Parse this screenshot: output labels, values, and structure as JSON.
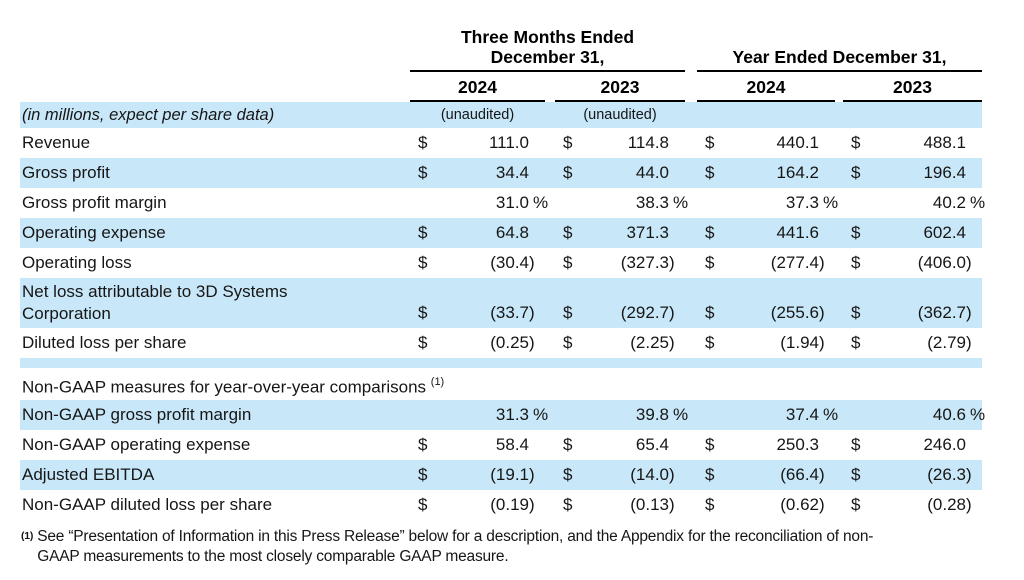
{
  "table": {
    "col_groups": [
      {
        "title_lines": [
          "Three Months Ended",
          "December 31,"
        ],
        "years": [
          "2024",
          "2023"
        ]
      },
      {
        "title_lines": [
          "Year Ended December 31,",
          ""
        ],
        "years": [
          "2024",
          "2023"
        ]
      }
    ],
    "rows": [
      {
        "type": "note",
        "shaded": true,
        "label": "(in millions, expect per share data)",
        "notes": [
          "(unaudited)",
          "(unaudited)"
        ]
      },
      {
        "type": "data",
        "shaded": false,
        "label": "Revenue",
        "cells": [
          {
            "cur": "$",
            "val": "111.0"
          },
          {
            "cur": "$",
            "val": "114.8"
          },
          {
            "cur": "$",
            "val": "440.1"
          },
          {
            "cur": "$",
            "val": "488.1"
          }
        ]
      },
      {
        "type": "data",
        "shaded": true,
        "label": "Gross profit",
        "cells": [
          {
            "cur": "$",
            "val": "34.4"
          },
          {
            "cur": "$",
            "val": "44.0"
          },
          {
            "cur": "$",
            "val": "164.2"
          },
          {
            "cur": "$",
            "val": "196.4"
          }
        ]
      },
      {
        "type": "data",
        "shaded": false,
        "label": "Gross profit margin",
        "cells": [
          {
            "cur": "",
            "val": "31.0 %"
          },
          {
            "cur": "",
            "val": "38.3 %"
          },
          {
            "cur": "",
            "val": "37.3 %"
          },
          {
            "cur": "",
            "val": "40.2 %"
          }
        ]
      },
      {
        "type": "data",
        "shaded": true,
        "label": "Operating expense",
        "cells": [
          {
            "cur": "$",
            "val": "64.8"
          },
          {
            "cur": "$",
            "val": "371.3"
          },
          {
            "cur": "$",
            "val": "441.6"
          },
          {
            "cur": "$",
            "val": "602.4"
          }
        ]
      },
      {
        "type": "data",
        "shaded": false,
        "label": "Operating loss",
        "cells": [
          {
            "cur": "$",
            "val": "(30.4)"
          },
          {
            "cur": "$",
            "val": "(327.3)"
          },
          {
            "cur": "$",
            "val": "(277.4)"
          },
          {
            "cur": "$",
            "val": "(406.0)"
          }
        ]
      },
      {
        "type": "data",
        "tall": true,
        "shaded": true,
        "label": "Net loss attributable to 3D Systems",
        "label2": "Corporation",
        "cells": [
          {
            "cur": "$",
            "val": "(33.7)"
          },
          {
            "cur": "$",
            "val": "(292.7)"
          },
          {
            "cur": "$",
            "val": "(255.6)"
          },
          {
            "cur": "$",
            "val": "(362.7)"
          }
        ]
      },
      {
        "type": "data",
        "shaded": false,
        "label": "Diluted loss per share",
        "cells": [
          {
            "cur": "$",
            "val": "(0.25)"
          },
          {
            "cur": "$",
            "val": "(2.25)"
          },
          {
            "cur": "$",
            "val": "(1.94)"
          },
          {
            "cur": "$",
            "val": "(2.79)"
          }
        ]
      },
      {
        "type": "spacer",
        "shaded": true
      },
      {
        "type": "section",
        "shaded": false,
        "label": "Non-GAAP measures for year-over-year comparisons",
        "sup": "(1)"
      },
      {
        "type": "data",
        "shaded": true,
        "label": "Non-GAAP gross profit margin",
        "cells": [
          {
            "cur": "",
            "val": "31.3 %"
          },
          {
            "cur": "",
            "val": "39.8 %"
          },
          {
            "cur": "",
            "val": "37.4 %"
          },
          {
            "cur": "",
            "val": "40.6 %"
          }
        ]
      },
      {
        "type": "data",
        "shaded": false,
        "label": "Non-GAAP operating expense",
        "cells": [
          {
            "cur": "$",
            "val": "58.4"
          },
          {
            "cur": "$",
            "val": "65.4"
          },
          {
            "cur": "$",
            "val": "250.3"
          },
          {
            "cur": "$",
            "val": "246.0"
          }
        ]
      },
      {
        "type": "data",
        "shaded": true,
        "label": "Adjusted EBITDA",
        "cells": [
          {
            "cur": "$",
            "val": "(19.1)"
          },
          {
            "cur": "$",
            "val": "(14.0)"
          },
          {
            "cur": "$",
            "val": "(66.4)"
          },
          {
            "cur": "$",
            "val": "(26.3)"
          }
        ]
      },
      {
        "type": "data",
        "shaded": false,
        "label": "Non-GAAP diluted loss per share",
        "cells": [
          {
            "cur": "$",
            "val": "(0.19)"
          },
          {
            "cur": "$",
            "val": "(0.13)"
          },
          {
            "cur": "$",
            "val": "(0.62)"
          },
          {
            "cur": "$",
            "val": "(0.28)"
          }
        ]
      }
    ]
  },
  "footnote": {
    "marker": "(1)",
    "lines": [
      "See “Presentation of Information in this Press Release” below for a description, and the Appendix for the reconciliation of non-",
      "GAAP measurements to the most closely comparable GAAP measure."
    ]
  }
}
